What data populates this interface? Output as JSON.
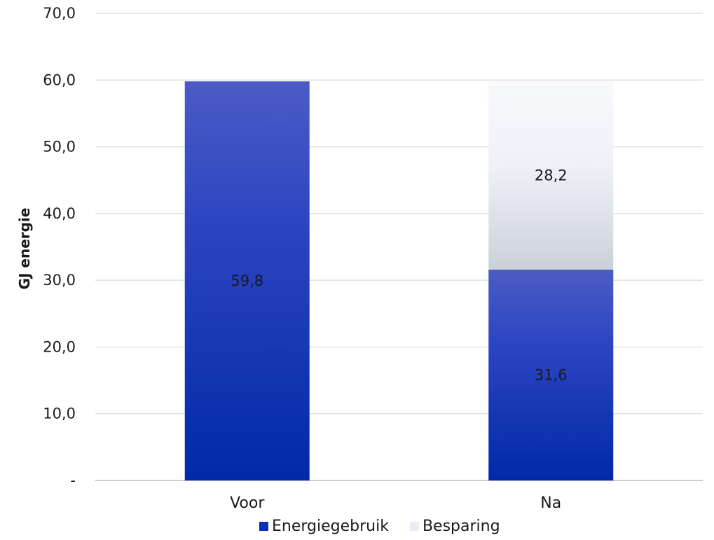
{
  "chart_data": {
    "type": "bar",
    "stacked": true,
    "title": "",
    "xlabel": "",
    "ylabel": "GJ energie",
    "ylim": [
      0,
      70
    ],
    "yticks": [
      0,
      10,
      20,
      30,
      40,
      50,
      60,
      70
    ],
    "ytick_labels": [
      "-",
      "10,0",
      "20,0",
      "30,0",
      "40,0",
      "50,0",
      "60,0",
      "70,0"
    ],
    "grid": true,
    "legend_position": "bottom",
    "categories": [
      "Voor",
      "Na"
    ],
    "series": [
      {
        "name": "Energiegebruik",
        "values": [
          59.8,
          31.6
        ],
        "labels": [
          "59,8",
          "31,6"
        ],
        "color": "#0a2fb3"
      },
      {
        "name": "Besparing",
        "values": [
          0,
          28.2
        ],
        "labels": [
          "",
          "28,2"
        ],
        "color": "#e8ecf6"
      }
    ]
  }
}
